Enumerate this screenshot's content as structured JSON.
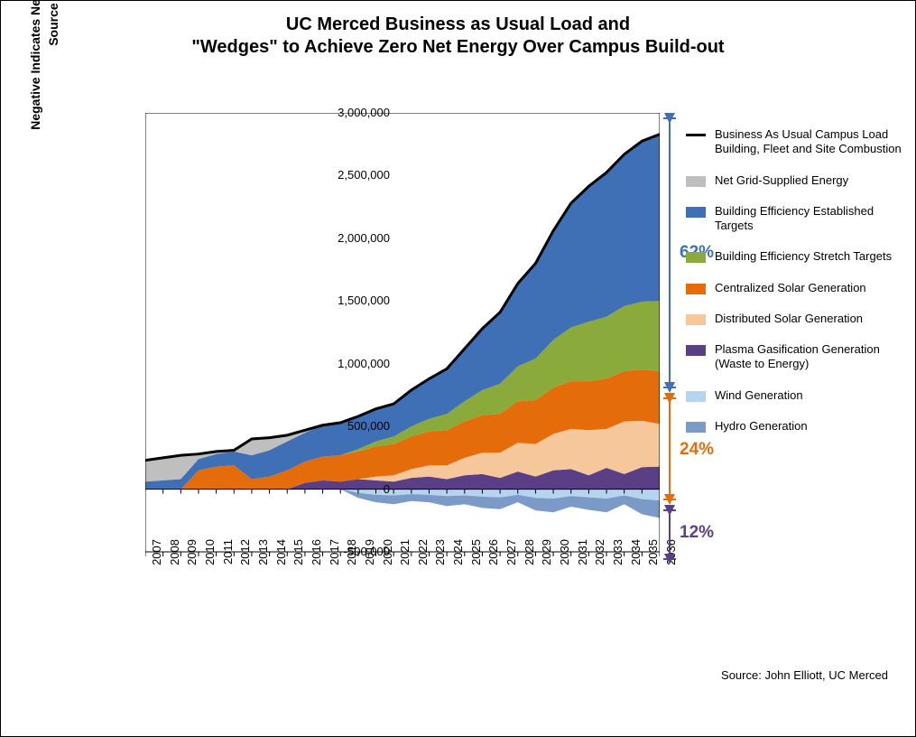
{
  "title_line1": "UC Merced Business as Usual Load and",
  "title_line2": "\"Wedges\" to Achieve Zero Net Energy Over Campus Build-out",
  "yaxis_label_top": "Source Energy (MBTU/yr)",
  "yaxis_label_bottom": "Negative Indicates Net Renewable Energy Generation",
  "source_text": "Source: John Elliott, UC Merced",
  "chart": {
    "type": "stacked-area",
    "xlim": [
      2007,
      2036
    ],
    "ylim": [
      -500000,
      3000000
    ],
    "ytick_step": 500000,
    "yticks": [
      "-500,000",
      "0",
      "500,000",
      "1,000,000",
      "1,500,000",
      "2,000,000",
      "2,500,000",
      "3,000,000"
    ],
    "years": [
      2007,
      2008,
      2009,
      2010,
      2011,
      2012,
      2013,
      2014,
      2015,
      2016,
      2017,
      2018,
      2019,
      2020,
      2021,
      2022,
      2023,
      2024,
      2025,
      2026,
      2027,
      2028,
      2029,
      2030,
      2031,
      2032,
      2033,
      2034,
      2035,
      2036
    ],
    "background_color": "#ffffff",
    "axis_color": "#000000",
    "tick_fontsize": 13,
    "title_fontsize": 20,
    "label_fontsize": 14,
    "series": {
      "hydro": {
        "color": "#7b9ac7",
        "values": [
          0,
          0,
          0,
          0,
          0,
          0,
          0,
          0,
          0,
          0,
          0,
          0,
          -40000,
          -60000,
          -70000,
          -55000,
          -60000,
          -80000,
          -70000,
          -90000,
          -95000,
          -60000,
          -100000,
          -110000,
          -85000,
          -100000,
          -110000,
          -70000,
          -120000,
          -140000
        ]
      },
      "wind": {
        "color": "#b7d4ef",
        "values": [
          0,
          0,
          0,
          0,
          0,
          0,
          0,
          0,
          0,
          0,
          0,
          0,
          -30000,
          -45000,
          -50000,
          -40000,
          -45000,
          -55000,
          -50000,
          -60000,
          -65000,
          -45000,
          -70000,
          -75000,
          -55000,
          -65000,
          -75000,
          -50000,
          -80000,
          -90000
        ]
      },
      "plasma": {
        "color": "#5a3f86",
        "values": [
          0,
          0,
          0,
          0,
          0,
          0,
          0,
          0,
          0,
          50000,
          70000,
          60000,
          80000,
          70000,
          60000,
          90000,
          100000,
          80000,
          110000,
          120000,
          90000,
          140000,
          100000,
          150000,
          160000,
          110000,
          170000,
          120000,
          175000,
          180000
        ]
      },
      "dist_solar": {
        "color": "#f6c79b",
        "values": [
          0,
          0,
          0,
          0,
          0,
          0,
          0,
          0,
          0,
          0,
          0,
          0,
          0,
          30000,
          50000,
          70000,
          90000,
          110000,
          140000,
          170000,
          200000,
          230000,
          260000,
          290000,
          320000,
          360000,
          310000,
          420000,
          370000,
          340000
        ]
      },
      "cent_solar": {
        "color": "#e46c0a",
        "values": [
          0,
          0,
          0,
          150000,
          180000,
          190000,
          80000,
          100000,
          150000,
          170000,
          190000,
          210000,
          220000,
          240000,
          250000,
          260000,
          270000,
          280000,
          290000,
          300000,
          310000,
          330000,
          350000,
          370000,
          380000,
          390000,
          400000,
          400000,
          410000,
          420000
        ]
      },
      "stretch": {
        "color": "#8aaa3b",
        "values": [
          0,
          0,
          0,
          0,
          0,
          0,
          0,
          0,
          0,
          0,
          0,
          0,
          20000,
          40000,
          60000,
          80000,
          100000,
          130000,
          160000,
          200000,
          240000,
          280000,
          330000,
          380000,
          430000,
          475000,
          495000,
          520000,
          540000,
          560000
        ]
      },
      "established": {
        "color": "#3f6fb5",
        "values": [
          60000,
          70000,
          80000,
          90000,
          100000,
          110000,
          190000,
          210000,
          230000,
          230000,
          250000,
          260000,
          260000,
          260000,
          260000,
          290000,
          320000,
          360000,
          420000,
          490000,
          570000,
          660000,
          760000,
          870000,
          990000,
          1080000,
          1150000,
          1210000,
          1280000,
          1330000
        ]
      },
      "net_grid": {
        "color": "#bfbfbf",
        "values": [
          170000,
          180000,
          190000,
          40000,
          20000,
          10000,
          130000,
          100000,
          50000,
          20000,
          0,
          0,
          0,
          0,
          0,
          0,
          0,
          0,
          0,
          0,
          0,
          0,
          0,
          0,
          0,
          0,
          0,
          0,
          0,
          0
        ]
      }
    },
    "bau_line": {
      "color": "#000000",
      "width": 3,
      "values": [
        230000,
        250000,
        270000,
        280000,
        300000,
        310000,
        400000,
        410000,
        430000,
        470000,
        510000,
        530000,
        580000,
        640000,
        680000,
        790000,
        880000,
        960000,
        1120000,
        1280000,
        1410000,
        1640000,
        1800000,
        2060000,
        2280000,
        2415000,
        2525000,
        2670000,
        2775000,
        2830000
      ]
    }
  },
  "legend": [
    {
      "type": "line",
      "color": "#000000",
      "label": "Business As Usual Campus Load Building, Fleet and Site Combustion"
    },
    {
      "type": "swatch",
      "color": "#bfbfbf",
      "label": "Net Grid-Supplied Energy"
    },
    {
      "type": "swatch",
      "color": "#3f6fb5",
      "label": "Building Efficiency Established Targets"
    },
    {
      "type": "swatch",
      "color": "#8aaa3b",
      "label": "Building Efficiency Stretch Targets"
    },
    {
      "type": "swatch",
      "color": "#e46c0a",
      "label": "Centralized Solar Generation"
    },
    {
      "type": "swatch",
      "color": "#f6c79b",
      "label": "Distributed Solar Generation"
    },
    {
      "type": "swatch",
      "color": "#5a3f86",
      "label": "Plasma Gasification Generation (Waste to Energy)"
    },
    {
      "type": "swatch",
      "color": "#b7d4ef",
      "label": "Wind Generation"
    },
    {
      "type": "swatch",
      "color": "#7b9ac7",
      "label": "Hydro Generation"
    }
  ],
  "annotations": {
    "pct_62": {
      "text": "62%",
      "color": "#3f6fb5"
    },
    "pct_24": {
      "text": "24%",
      "color": "#e46c0a"
    },
    "pct_12": {
      "text": "12%",
      "color": "#5a3f86"
    }
  }
}
